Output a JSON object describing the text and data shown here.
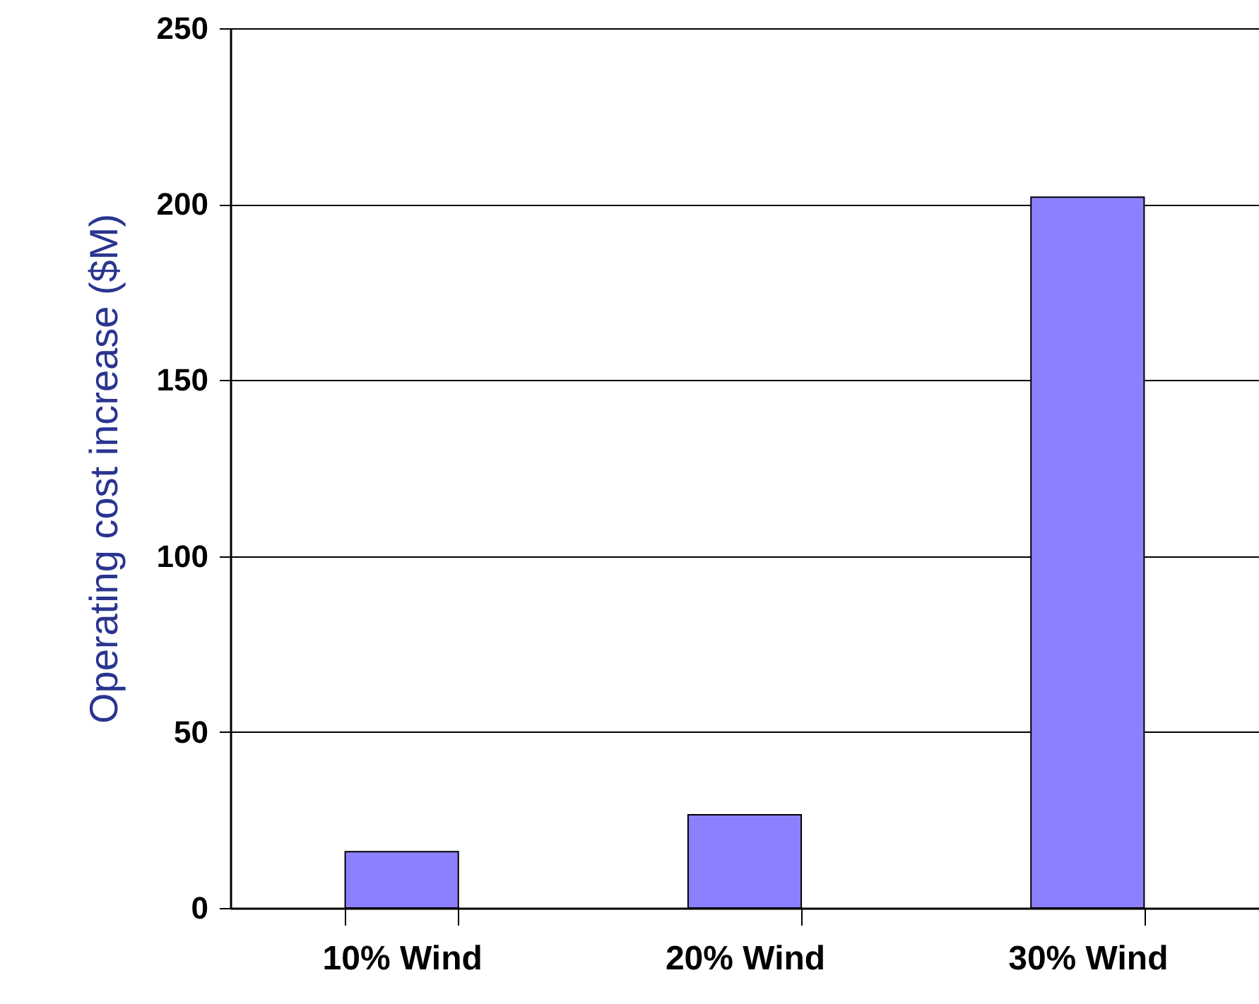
{
  "chart_data": {
    "type": "bar",
    "ylabel": "Operating cost increase ($M)",
    "categories": [
      "10% Wind",
      "20% Wind",
      "30% Wind"
    ],
    "values": [
      16,
      26.5,
      202
    ],
    "color": "#8c80ff",
    "ylim": [
      0,
      250
    ],
    "yticks": [
      0,
      50,
      100,
      150,
      200,
      250
    ],
    "grid": "y"
  }
}
